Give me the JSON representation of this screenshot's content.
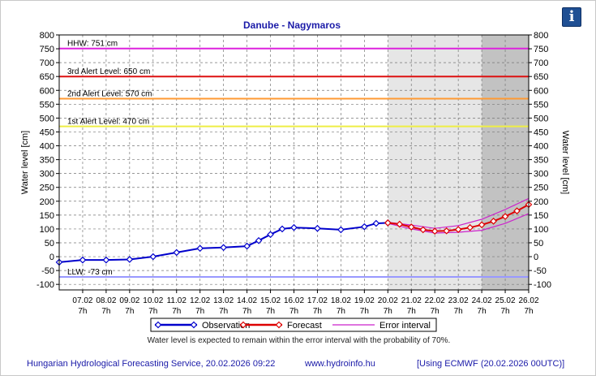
{
  "header": {
    "title": "Danube - Nagymaros",
    "info_icon": "info-icon"
  },
  "note": "Water level is expected to remain within the error interval with the probability of 70%.",
  "footer": {
    "service": "Hungarian Hydrological Forecasting Service, 20.02.2026 09:22",
    "website": "www.hydroinfo.hu",
    "model": "[Using ECMWF (20.02.2026  00UTC)]"
  },
  "colors": {
    "title": "#1a1aa8",
    "observation": "#0000cc",
    "forecast": "#dd0000",
    "error": "#cc22cc",
    "hhw": "#dd22dd",
    "alert3": "#dd1111",
    "alert2": "#ff9933",
    "alert1": "#eeee44",
    "llw": "#9999ff",
    "forecast_band_light": "#e6e6e6",
    "forecast_band_dark": "#c2c2c2"
  },
  "chart_data": {
    "type": "line",
    "title": "Danube - Nagymaros",
    "ylabel": "Water level [cm]",
    "ylabel_right": "Water level [cm]",
    "ylim": [
      -120,
      800
    ],
    "yticks": [
      -100,
      -50,
      0,
      50,
      100,
      150,
      200,
      250,
      300,
      350,
      400,
      450,
      500,
      550,
      600,
      650,
      700,
      750,
      800
    ],
    "grid": true,
    "xticks": [
      {
        "date": "07.02",
        "hour": "7h"
      },
      {
        "date": "08.02",
        "hour": "7h"
      },
      {
        "date": "09.02",
        "hour": "7h"
      },
      {
        "date": "10.02",
        "hour": "7h"
      },
      {
        "date": "11.02",
        "hour": "7h"
      },
      {
        "date": "12.02",
        "hour": "7h"
      },
      {
        "date": "13.02",
        "hour": "7h"
      },
      {
        "date": "14.02",
        "hour": "7h"
      },
      {
        "date": "15.02",
        "hour": "7h"
      },
      {
        "date": "16.02",
        "hour": "7h"
      },
      {
        "date": "17.02",
        "hour": "7h"
      },
      {
        "date": "18.02",
        "hour": "7h"
      },
      {
        "date": "19.02",
        "hour": "7h"
      },
      {
        "date": "20.02",
        "hour": "7h"
      },
      {
        "date": "21.02",
        "hour": "7h"
      },
      {
        "date": "22.02",
        "hour": "7h"
      },
      {
        "date": "23.02",
        "hour": "7h"
      },
      {
        "date": "24.02",
        "hour": "7h"
      },
      {
        "date": "25.02",
        "hour": "7h"
      },
      {
        "date": "26.02",
        "hour": "7h"
      }
    ],
    "x_start": "06.02 07h",
    "x_end": "26.02 07h",
    "forecast_start": "20.02 07h",
    "forecast_dark_start": "24.02 07h",
    "reference_lines": [
      {
        "label": "HHW: 751 cm",
        "value": 751,
        "color": "#dd22dd"
      },
      {
        "label": "3rd Alert Level: 650 cm",
        "value": 650,
        "color": "#dd1111"
      },
      {
        "label": "2nd Alert Level: 570 cm",
        "value": 570,
        "color": "#ff9933"
      },
      {
        "label": "1st Alert Level: 470 cm",
        "value": 470,
        "color": "#eeee44"
      },
      {
        "label": "LLW: -73 cm",
        "value": -73,
        "color": "#9999ff"
      }
    ],
    "series": [
      {
        "name": "Observation",
        "x": [
          "06.02 07h",
          "07.02 07h",
          "08.02 07h",
          "09.02 07h",
          "10.02 07h",
          "11.02 07h",
          "12.02 07h",
          "13.02 07h",
          "14.02 07h",
          "14.02 19h",
          "15.02 07h",
          "15.02 19h",
          "16.02 07h",
          "17.02 07h",
          "18.02 07h",
          "19.02 07h",
          "19.02 19h",
          "20.02 07h"
        ],
        "values": [
          -20,
          -12,
          -12,
          -10,
          0,
          15,
          30,
          33,
          38,
          58,
          80,
          100,
          105,
          102,
          97,
          108,
          120,
          122
        ]
      },
      {
        "name": "Forecast",
        "x": [
          "20.02 07h",
          "20.02 19h",
          "21.02 07h",
          "21.02 19h",
          "22.02 07h",
          "22.02 19h",
          "23.02 07h",
          "23.02 19h",
          "24.02 07h",
          "24.02 19h",
          "25.02 07h",
          "25.02 19h",
          "26.02 07h"
        ],
        "values": [
          122,
          117,
          107,
          97,
          92,
          93,
          98,
          105,
          115,
          128,
          145,
          165,
          188
        ]
      },
      {
        "name": "Error interval",
        "x": [
          "20.02 07h",
          "21.02 07h",
          "22.02 07h",
          "23.02 07h",
          "24.02 07h",
          "25.02 07h",
          "26.02 07h"
        ],
        "upper": [
          124,
          114,
          102,
          112,
          135,
          170,
          210
        ],
        "lower": [
          120,
          100,
          85,
          88,
          95,
          120,
          155
        ]
      }
    ],
    "legend": {
      "placement": "bottom-center",
      "items": [
        "Observation",
        "Forecast",
        "Error interval"
      ]
    }
  }
}
